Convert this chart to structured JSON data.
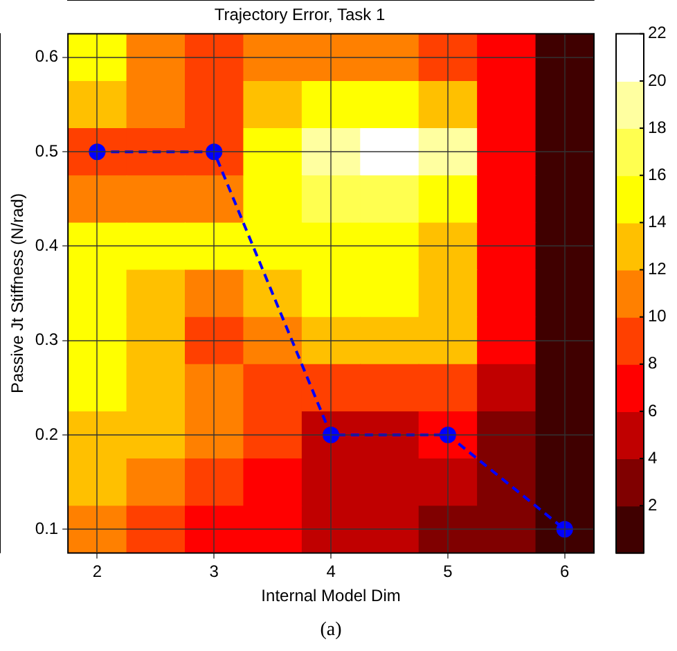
{
  "chart_data": {
    "type": "heatmap",
    "title": "Trajectory Error, Task 1",
    "xlabel": "Internal Model Dim",
    "ylabel": "Passive Jt Stiffness (N/rad)",
    "categories": [
      "2",
      null,
      "3",
      null,
      "4",
      null,
      "5",
      null,
      "6"
    ],
    "ylim": [
      0.075,
      0.625
    ],
    "yticks": [
      0.1,
      0.2,
      0.3,
      0.4,
      0.5,
      0.6
    ],
    "cells": [
      [
        15,
        11,
        9,
        11,
        11,
        11,
        9,
        7,
        1
      ],
      [
        13,
        11,
        9,
        13,
        15,
        15,
        13,
        7,
        1
      ],
      [
        9,
        9,
        9,
        15,
        19,
        21,
        19,
        7,
        1
      ],
      [
        11,
        11,
        11,
        15,
        17,
        17,
        15,
        7,
        1
      ],
      [
        15,
        15,
        15,
        15,
        15,
        15,
        13,
        7,
        1
      ],
      [
        15,
        13,
        11,
        13,
        15,
        15,
        13,
        7,
        1
      ],
      [
        15,
        13,
        9,
        11,
        13,
        13,
        13,
        7,
        1
      ],
      [
        15,
        13,
        11,
        9,
        9,
        9,
        9,
        5,
        1
      ],
      [
        13,
        13,
        11,
        9,
        5,
        5,
        7,
        3,
        1
      ],
      [
        13,
        11,
        9,
        7,
        5,
        5,
        5,
        3,
        1
      ],
      [
        11,
        9,
        7,
        7,
        5,
        5,
        3,
        3,
        1
      ]
    ],
    "colors": [
      "#400000",
      "#800000",
      "#c00000",
      "#ff0000",
      "#ff4000",
      "#ff8000",
      "#ffc000",
      "#ffff00",
      "#ffff50",
      "#ffffa0",
      "#ffffff"
    ],
    "clim": [
      0,
      22
    ],
    "cticks": [
      2,
      4,
      6,
      8,
      10,
      12,
      14,
      16,
      18,
      20,
      22
    ],
    "grid": true,
    "legend": false,
    "series": [
      {
        "type": "line",
        "color": "#0000ff",
        "values": [
          0.5,
          null,
          0.5,
          null,
          0.2,
          null,
          0.2,
          null,
          0.1
        ],
        "marker": "circle",
        "line_style": "dashed"
      }
    ],
    "annotations": [
      "(a)"
    ]
  }
}
